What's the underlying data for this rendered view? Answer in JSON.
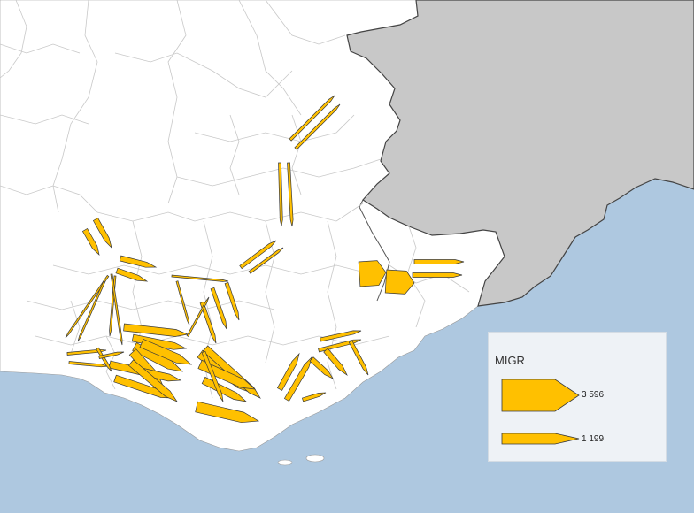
{
  "legend": {
    "title": "MIGR",
    "max_value": "3 596",
    "min_value": "1 199"
  },
  "colors": {
    "sea": "#aec8e0",
    "land": "#ffffff",
    "neighbor_country": "#c8c8c8",
    "flow_fill": "#ffc000",
    "flow_stroke": "#3a3a3a"
  }
}
